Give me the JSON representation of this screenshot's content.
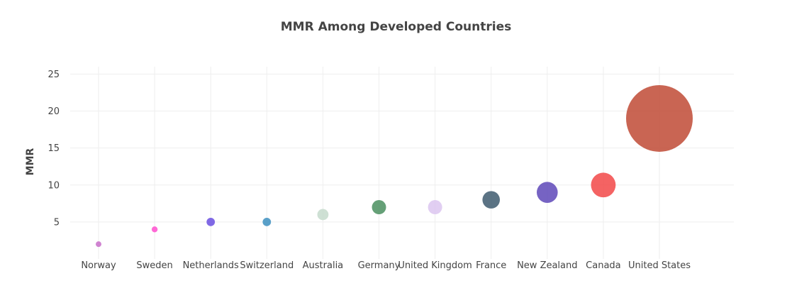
{
  "chart_data": {
    "type": "scatter",
    "title": "MMR Among Developed Countries",
    "xlabel": "",
    "ylabel": "MMR",
    "ylim": [
      0,
      26
    ],
    "yticks": [
      5,
      10,
      15,
      20,
      25
    ],
    "grid": true,
    "legend": "none",
    "categories": [
      "Norway",
      "Sweden",
      "Netherlands",
      "Switzerland",
      "Australia",
      "Germany",
      "United Kingdom",
      "France",
      "New Zealand",
      "Canada",
      "United States"
    ],
    "values": [
      2,
      4,
      5,
      5,
      6,
      7,
      7,
      8,
      9,
      10,
      19
    ],
    "colors": [
      "#c86fc9",
      "#ff4fcf",
      "#6a4fe0",
      "#3d8fc0",
      "#c6dacd",
      "#4a8f5f",
      "#dcc6f0",
      "#3e5a6e",
      "#5e48b8",
      "#f24848",
      "#c04a35"
    ]
  }
}
